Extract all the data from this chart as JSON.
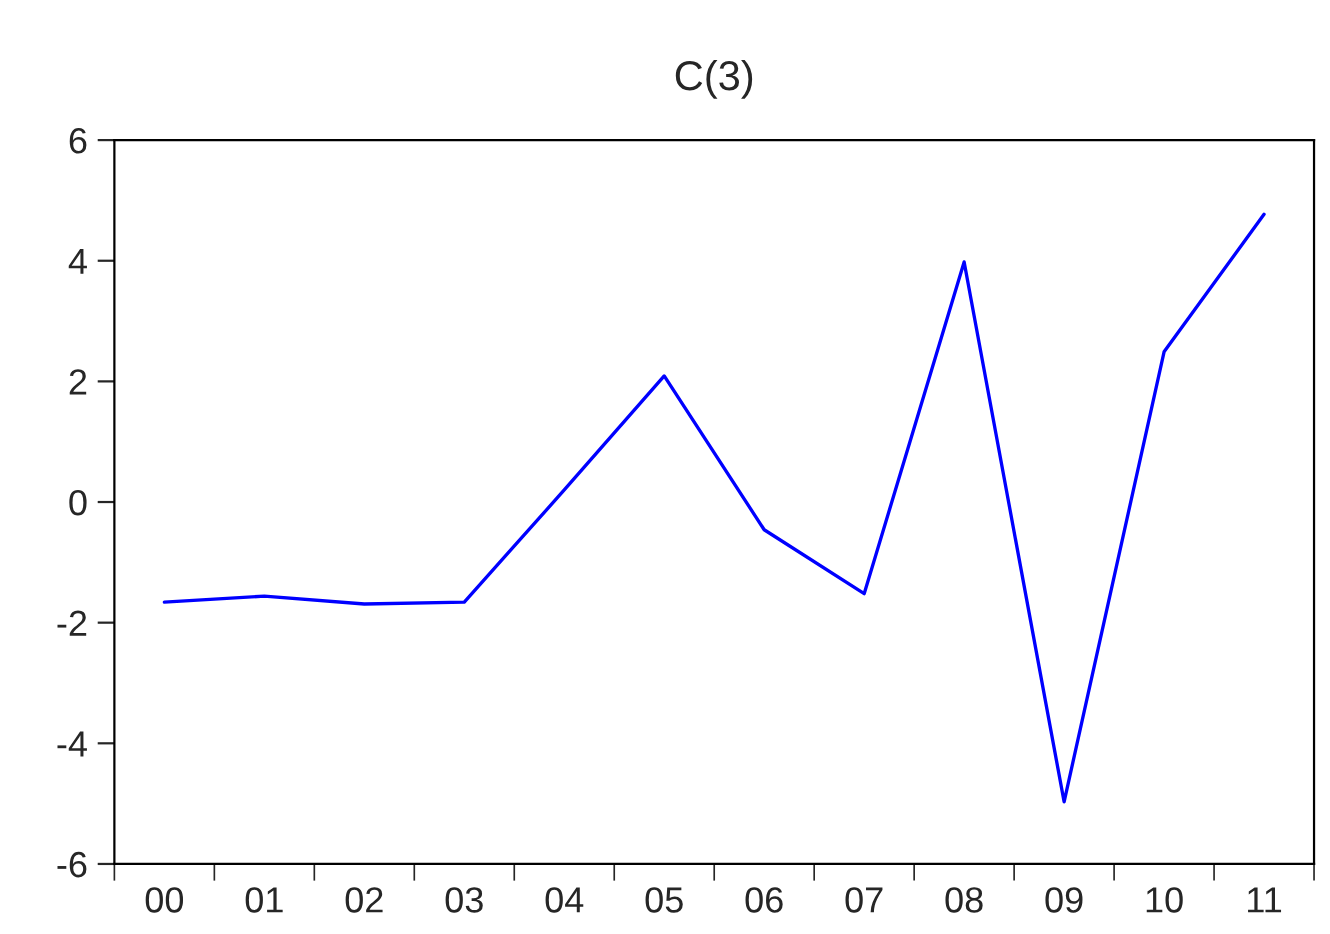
{
  "chart_data": {
    "type": "line",
    "title": "C(3)",
    "categories": [
      "00",
      "01",
      "02",
      "03",
      "04",
      "05",
      "06",
      "07",
      "08",
      "09",
      "10",
      "11"
    ],
    "series": [
      {
        "color": "#0000ff",
        "values": [
          -1.66,
          -1.56,
          -1.69,
          -1.66,
          0.2,
          2.09,
          -0.46,
          -1.52,
          3.98,
          -4.97,
          2.49,
          4.77
        ]
      }
    ],
    "ylim": [
      -6,
      6
    ],
    "yticks": [
      -6,
      -4,
      -2,
      0,
      2,
      4,
      6
    ],
    "grid": false,
    "legend": false,
    "marker": "none",
    "line_style": "solid"
  }
}
